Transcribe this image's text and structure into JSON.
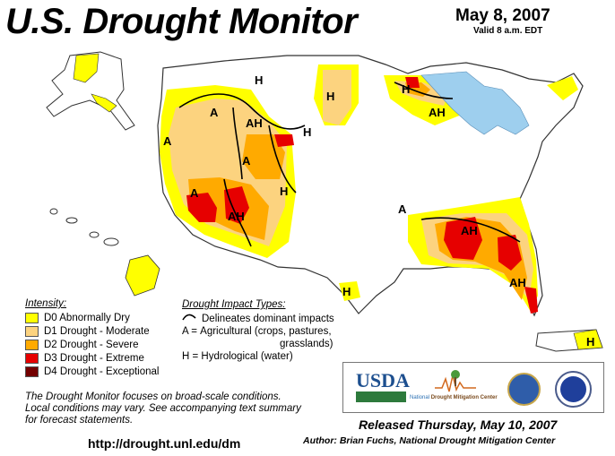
{
  "title": "U.S. Drought Monitor",
  "date": "May 8, 2007",
  "valid": "Valid 8 a.m. EDT",
  "colors": {
    "d0": "#ffff00",
    "d1": "#fcd37f",
    "d2": "#ffaa00",
    "d3": "#e60000",
    "d4": "#730000",
    "water": "#9ecfee",
    "land": "#ffffff"
  },
  "legend": {
    "heading": "Intensity:",
    "items": [
      {
        "label": "D0 Abnormally Dry",
        "color": "#ffff00"
      },
      {
        "label": "D1 Drought - Moderate",
        "color": "#fcd37f"
      },
      {
        "label": "D2 Drought - Severe",
        "color": "#ffaa00"
      },
      {
        "label": "D3 Drought - Extreme",
        "color": "#e60000"
      },
      {
        "label": "D4 Drought - Exceptional",
        "color": "#730000"
      }
    ]
  },
  "impact": {
    "heading": "Drought Impact Types:",
    "line1": "Delineates dominant impacts",
    "line2_key": "A =",
    "line2": "Agricultural (crops, pastures,",
    "line2b": "grasslands)",
    "line3_key": "H =",
    "line3": "Hydrological (water)"
  },
  "map_labels": [
    "H",
    "A",
    "H",
    "H",
    "AH",
    "AH",
    "A",
    "H",
    "A",
    "A",
    "H",
    "AH",
    "A",
    "AH",
    "AH",
    "H",
    "H"
  ],
  "note": {
    "line1": "The Drought Monitor focuses on broad-scale conditions.",
    "line2": "Local conditions may vary.  See accompanying text summary",
    "line3": "for forecast statements."
  },
  "url": "http://drought.unl.edu/dm",
  "logos": {
    "usda": "USDA",
    "ndmc_a": "National ",
    "ndmc_b": "Drought Mitigation Center"
  },
  "released": "Released Thursday, May 10, 2007",
  "author": "Author: Brian Fuchs, National Drought Mitigation Center"
}
